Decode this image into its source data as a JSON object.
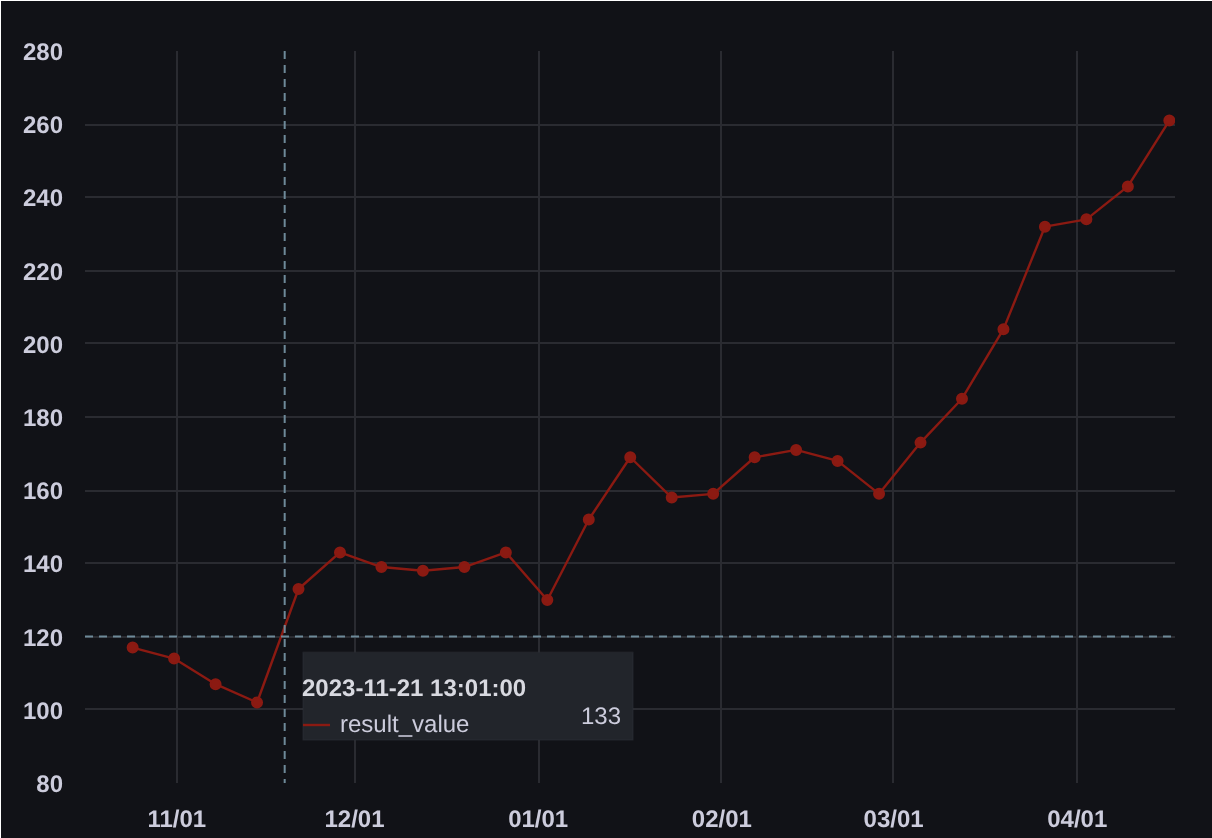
{
  "chart_data": {
    "type": "line",
    "x": [
      "2023-10-24T13:01",
      "2023-10-31T13:01",
      "2023-11-07T13:01",
      "2023-11-14T13:01",
      "2023-11-21T13:01",
      "2023-11-28T13:01",
      "2023-12-05T13:01",
      "2023-12-12T13:01",
      "2023-12-19T13:01",
      "2023-12-26T13:01",
      "2024-01-02T13:01",
      "2024-01-09T13:01",
      "2024-01-16T13:01",
      "2024-01-23T13:01",
      "2024-01-30T13:01",
      "2024-02-06T13:01",
      "2024-02-13T13:01",
      "2024-02-20T13:01",
      "2024-02-27T13:01",
      "2024-03-05T13:01",
      "2024-03-12T13:01",
      "2024-03-19T13:01",
      "2024-03-26T13:01",
      "2024-04-02T13:01",
      "2024-04-09T13:01",
      "2024-04-16T13:01"
    ],
    "series": [
      {
        "name": "result_value",
        "color": "#8b1a12",
        "values": [
          117,
          114,
          107,
          102,
          133,
          143,
          139,
          138,
          139,
          143,
          130,
          152,
          169,
          158,
          159,
          169,
          171,
          168,
          159,
          173,
          185,
          204,
          232,
          234,
          243,
          261
        ]
      }
    ],
    "xlim": [
      "2023-10-16T12:00",
      "2024-04-17T12:00"
    ],
    "xticks": [
      {
        "value": "2023-11-01",
        "label": "11/01"
      },
      {
        "value": "2023-12-01",
        "label": "12/01"
      },
      {
        "value": "2024-01-01",
        "label": "01/01"
      },
      {
        "value": "2024-02-01",
        "label": "02/01"
      },
      {
        "value": "2024-03-01",
        "label": "03/01"
      },
      {
        "value": "2024-04-01",
        "label": "04/01"
      }
    ],
    "ylim": [
      80,
      280
    ],
    "yticks": [
      80,
      100,
      120,
      140,
      160,
      180,
      200,
      220,
      240,
      260,
      280
    ],
    "grid": true,
    "marker": "circle",
    "line_style": "solid",
    "legend": "bottom left",
    "legend_title": "2023-11-21 13:01:00",
    "ref_lines": [
      {
        "axis": "x",
        "value": "2023-11-19T05:00",
        "color": "#6e8a99",
        "line_style": "dashed"
      },
      {
        "axis": "y",
        "value": 120,
        "color": "#6e8a99",
        "line_style": "dashed"
      }
    ],
    "annotations": [
      "133"
    ]
  }
}
